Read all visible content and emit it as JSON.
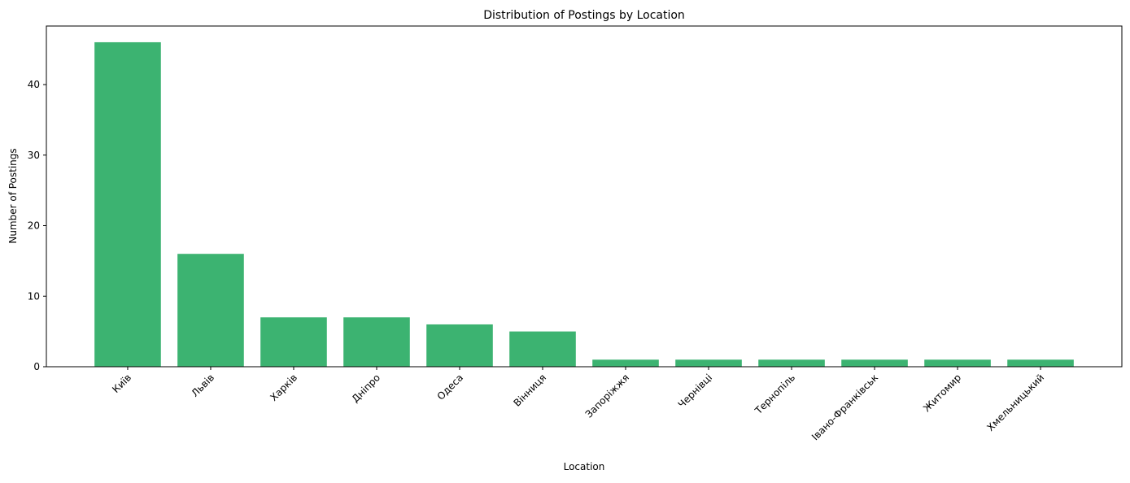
{
  "chart_data": {
    "type": "bar",
    "title": "Distribution of Postings by Location",
    "xlabel": "Location",
    "ylabel": "Number of Postings",
    "categories": [
      "Київ",
      "Львів",
      "Харків",
      "Дніпро",
      "Одеса",
      "Вінниця",
      "Запоріжжя",
      "Чернівці",
      "Тернопіль",
      "Івано-Франківськ",
      "Житомир",
      "Хмельницький"
    ],
    "values": [
      46,
      16,
      7,
      7,
      6,
      5,
      1,
      1,
      1,
      1,
      1,
      1
    ],
    "ylim": [
      0,
      48.3
    ],
    "yticks": [
      0,
      10,
      20,
      30,
      40
    ],
    "bar_color": "#3cb371",
    "grid": false,
    "legend": "none"
  }
}
